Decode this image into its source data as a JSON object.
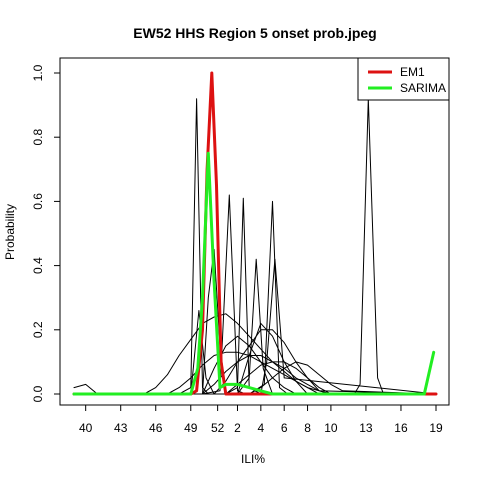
{
  "chart_data": {
    "type": "line",
    "title": "EW52 HHS Region 5 onset prob.jpeg",
    "xlabel": "ILI%",
    "ylabel": "Probability",
    "xlim": [
      0,
      31
    ],
    "ylim": [
      0,
      1
    ],
    "grid": false,
    "legend_position": "top-right",
    "x_ticks": [
      {
        "x": 1,
        "label": "40"
      },
      {
        "x": 4,
        "label": "43"
      },
      {
        "x": 7,
        "label": "46"
      },
      {
        "x": 10,
        "label": "49"
      },
      {
        "x": 12.3,
        "label": "52"
      },
      {
        "x": 14,
        "label": "2"
      },
      {
        "x": 16,
        "label": "4"
      },
      {
        "x": 18,
        "label": "6"
      },
      {
        "x": 20,
        "label": "8"
      },
      {
        "x": 22,
        "label": "10"
      },
      {
        "x": 25,
        "label": "13"
      },
      {
        "x": 28,
        "label": "16"
      },
      {
        "x": 31,
        "label": "19"
      }
    ],
    "y_ticks": [
      {
        "y": 0.0,
        "label": "0.0"
      },
      {
        "y": 0.2,
        "label": "0.2"
      },
      {
        "y": 0.4,
        "label": "0.4"
      },
      {
        "y": 0.6,
        "label": "0.6"
      },
      {
        "y": 0.8,
        "label": "0.8"
      },
      {
        "y": 1.0,
        "label": "1.0"
      }
    ],
    "series": [
      {
        "name": "EM1",
        "color": "#dd1111",
        "width": 3,
        "legend": true,
        "x": [
          0,
          1,
          2,
          3,
          4,
          5,
          6,
          7,
          8,
          9,
          10,
          10.5,
          11,
          11.4,
          11.8,
          12.2,
          12.6,
          13,
          14,
          15,
          16,
          17,
          18,
          19,
          20,
          21,
          22,
          23,
          24,
          25,
          26,
          27,
          28,
          29,
          30,
          31
        ],
        "y": [
          0,
          0,
          0,
          0,
          0,
          0,
          0,
          0,
          0,
          0,
          0,
          0.01,
          0.2,
          0.7,
          1.0,
          0.65,
          0.1,
          0.0,
          0,
          0,
          0,
          0,
          0,
          0,
          0,
          0,
          0,
          0,
          0,
          0,
          0,
          0,
          0,
          0,
          0,
          0
        ]
      },
      {
        "name": "SARIMA",
        "color": "#22ee22",
        "width": 3,
        "legend": true,
        "x": [
          0,
          1,
          2,
          3,
          4,
          5,
          6,
          7,
          8,
          9,
          10,
          10.6,
          11,
          11.5,
          12,
          12.5,
          13,
          13.5,
          14,
          15,
          16,
          17,
          18,
          19,
          20,
          21,
          22,
          23,
          24,
          25,
          26,
          27,
          28,
          29,
          30,
          30.8
        ],
        "y": [
          0,
          0,
          0,
          0,
          0,
          0,
          0,
          0,
          0,
          0,
          0,
          0.08,
          0.3,
          0.75,
          0.35,
          0.02,
          0.03,
          0.03,
          0.03,
          0.02,
          0.01,
          0.0,
          0,
          0,
          0,
          0,
          0,
          0,
          0,
          0,
          0,
          0,
          0,
          0,
          0.0,
          0.13
        ]
      },
      {
        "name": "",
        "color": "#000000",
        "width": 1,
        "legend": false,
        "x": [
          0,
          1,
          2,
          3,
          4,
          5,
          6,
          7,
          8,
          9,
          10,
          10.5,
          11,
          11.5,
          12,
          13,
          14,
          15,
          16,
          17,
          18,
          19,
          20,
          21,
          22,
          23,
          24,
          25,
          26,
          27,
          28,
          29,
          30,
          31
        ],
        "y": [
          0.02,
          0.03,
          0.0,
          0,
          0,
          0,
          0,
          0,
          0,
          0,
          0.02,
          0.92,
          0.02,
          0,
          0,
          0,
          0,
          0,
          0,
          0,
          0,
          0,
          0,
          0,
          0,
          0,
          0,
          0,
          0,
          0,
          0,
          0,
          0,
          0
        ]
      },
      {
        "name": "",
        "color": "#000000",
        "width": 1,
        "legend": false,
        "x": [
          0,
          6,
          7,
          8,
          9,
          10,
          11,
          12,
          13,
          14,
          15,
          16,
          17,
          18,
          19,
          20,
          21,
          31
        ],
        "y": [
          0,
          0,
          0.02,
          0.06,
          0.12,
          0.17,
          0.22,
          0.24,
          0.25,
          0.22,
          0.18,
          0.14,
          0.1,
          0.07,
          0.04,
          0.02,
          0,
          0
        ]
      },
      {
        "name": "",
        "color": "#000000",
        "width": 1,
        "legend": false,
        "x": [
          0,
          8,
          9,
          10,
          11,
          12,
          13,
          14,
          15,
          16,
          17,
          18,
          19,
          20,
          21,
          22,
          31
        ],
        "y": [
          0,
          0,
          0.02,
          0.05,
          0.09,
          0.12,
          0.13,
          0.13,
          0.12,
          0.1,
          0.08,
          0.06,
          0.04,
          0.02,
          0.01,
          0,
          0
        ]
      },
      {
        "name": "",
        "color": "#000000",
        "width": 1,
        "legend": false,
        "x": [
          0,
          11,
          12,
          13,
          14,
          15,
          16,
          17,
          18,
          19,
          20,
          21,
          22,
          31
        ],
        "y": [
          0,
          0,
          0.03,
          0.07,
          0.1,
          0.12,
          0.12,
          0.1,
          0.08,
          0.05,
          0.03,
          0.01,
          0,
          0
        ]
      },
      {
        "name": "",
        "color": "#000000",
        "width": 1,
        "legend": false,
        "x": [
          0,
          11,
          12.5,
          13.3,
          14,
          14.7,
          15.5,
          31
        ],
        "y": [
          0,
          0,
          0.01,
          0.62,
          0.01,
          0.0,
          0,
          0
        ]
      },
      {
        "name": "",
        "color": "#000000",
        "width": 1,
        "legend": false,
        "x": [
          0,
          13,
          14,
          14.5,
          15,
          16,
          31
        ],
        "y": [
          0,
          0,
          0.02,
          0.61,
          0.02,
          0,
          0
        ]
      },
      {
        "name": "",
        "color": "#000000",
        "width": 1,
        "legend": false,
        "x": [
          0,
          15,
          16.3,
          17,
          17.6,
          18.3,
          19,
          31
        ],
        "y": [
          0,
          0,
          0.03,
          0.6,
          0.02,
          0.0,
          0,
          0
        ]
      },
      {
        "name": "",
        "color": "#000000",
        "width": 1,
        "legend": false,
        "x": [
          0,
          14,
          15,
          15.6,
          16.2,
          17,
          31
        ],
        "y": [
          0,
          0,
          0.05,
          0.42,
          0.08,
          0,
          0
        ]
      },
      {
        "name": "",
        "color": "#000000",
        "width": 1,
        "legend": false,
        "x": [
          0,
          16,
          16.5,
          17.2,
          18,
          31
        ],
        "y": [
          0,
          0,
          0.1,
          0.42,
          0.05,
          0
        ]
      },
      {
        "name": "",
        "color": "#000000",
        "width": 1,
        "legend": false,
        "x": [
          0,
          11,
          11.5,
          12,
          12.5,
          13,
          31
        ],
        "y": [
          0,
          0,
          0.3,
          0.45,
          0.15,
          0,
          0
        ]
      },
      {
        "name": "",
        "color": "#000000",
        "width": 1,
        "legend": false,
        "x": [
          0,
          10,
          10.7,
          11.3,
          12,
          31
        ],
        "y": [
          0,
          0,
          0.26,
          0.05,
          0,
          0
        ]
      },
      {
        "name": "",
        "color": "#000000",
        "width": 1,
        "legend": false,
        "x": [
          0,
          12,
          13,
          14,
          15,
          16,
          17,
          18,
          19,
          20,
          21,
          31
        ],
        "y": [
          0,
          0,
          0.04,
          0.1,
          0.15,
          0.2,
          0.2,
          0.16,
          0.1,
          0.05,
          0.01,
          0
        ]
      },
      {
        "name": "",
        "color": "#000000",
        "width": 1,
        "legend": false,
        "x": [
          0,
          13,
          14,
          15,
          16,
          17,
          18,
          19,
          20,
          21,
          22,
          31
        ],
        "y": [
          0,
          0,
          0.03,
          0.06,
          0.09,
          0.1,
          0.1,
          0.08,
          0.05,
          0.02,
          0,
          0
        ]
      },
      {
        "name": "",
        "color": "#000000",
        "width": 1,
        "legend": false,
        "x": [
          0,
          15,
          16,
          17,
          18,
          19,
          20,
          21,
          22,
          23,
          31
        ],
        "y": [
          0,
          0,
          0.02,
          0.05,
          0.08,
          0.1,
          0.09,
          0.06,
          0.03,
          0.01,
          0
        ]
      },
      {
        "name": "",
        "color": "#000000",
        "width": 1,
        "legend": false,
        "x": [
          0,
          11,
          12,
          13,
          14,
          15,
          16,
          17,
          18,
          19,
          31
        ],
        "y": [
          0,
          0,
          0.08,
          0.15,
          0.18,
          0.15,
          0.1,
          0.05,
          0.02,
          0,
          0
        ]
      },
      {
        "name": "",
        "color": "#000000",
        "width": 1,
        "legend": false,
        "x": [
          0,
          14,
          15,
          16,
          17,
          18,
          19,
          20,
          31
        ],
        "y": [
          0,
          0,
          0.12,
          0.22,
          0.18,
          0.1,
          0.04,
          0,
          0
        ]
      },
      {
        "name": "",
        "color": "#000000",
        "width": 1,
        "legend": false,
        "x": [
          0,
          23,
          24,
          24.5,
          25.2,
          26,
          26.5,
          27,
          31
        ],
        "y": [
          0,
          0,
          0.0,
          0.03,
          0.92,
          0.05,
          0.0,
          0,
          0
        ]
      }
    ]
  }
}
